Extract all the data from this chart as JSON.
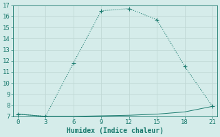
{
  "line1_x": [
    0,
    3,
    6,
    9,
    12,
    15,
    18,
    21
  ],
  "line1_y": [
    7.2,
    7.0,
    11.8,
    16.5,
    16.7,
    15.7,
    11.5,
    7.9
  ],
  "line2_x": [
    0,
    3,
    6,
    9,
    12,
    15,
    18,
    21
  ],
  "line2_y": [
    7.2,
    7.0,
    7.0,
    7.05,
    7.1,
    7.2,
    7.4,
    7.9
  ],
  "line_color": "#1a7a6e",
  "bg_color": "#d5ecea",
  "grid_color": "#c0d8d5",
  "xlabel": "Humidex (Indice chaleur)",
  "xlim": [
    -0.5,
    21.5
  ],
  "ylim": [
    7,
    17
  ],
  "xticks": [
    0,
    3,
    6,
    9,
    12,
    15,
    18,
    21
  ],
  "yticks": [
    7,
    8,
    9,
    10,
    11,
    12,
    13,
    14,
    15,
    16,
    17
  ],
  "xlabel_fontsize": 7,
  "tick_fontsize": 6.5
}
